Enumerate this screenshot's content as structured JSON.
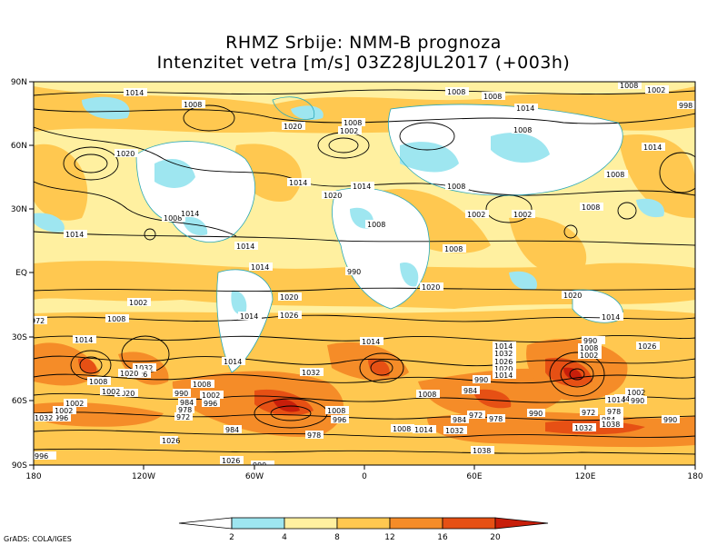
{
  "title": {
    "line1": "RHMZ Srbije: NMM-B prognoza",
    "line2": "Intenzitet vetra [m/s] 03Z28JUL2017 (+003h)"
  },
  "lat_labels": [
    "90N",
    "60N",
    "30N",
    "EQ",
    "30S",
    "60S",
    "90S"
  ],
  "lon_labels": [
    "180",
    "120W",
    "60W",
    "0",
    "60E",
    "120E",
    "180"
  ],
  "colorbar": {
    "ticks": [
      "2",
      "4",
      "8",
      "12",
      "16",
      "20"
    ],
    "colors": [
      "#ffffff",
      "#9ee6f0",
      "#fff0a0",
      "#ffc850",
      "#f58c28",
      "#e65014",
      "#c81e0a"
    ]
  },
  "isobar_labels": [
    "1014",
    "1008",
    "1008",
    "1008",
    "1002",
    "998",
    "1008",
    "1020",
    "1008",
    "1002",
    "1014",
    "1008",
    "1020",
    "1014",
    "1014",
    "1020",
    "1014",
    "1008",
    "1008",
    "1002",
    "1002",
    "1008",
    "1008",
    "1014",
    "1014",
    "1008",
    "1008",
    "1014",
    "1014",
    "1020",
    "1020",
    "1014",
    "1026",
    "1014",
    "1008",
    "1032",
    "1026",
    "1002",
    "1008",
    "1020",
    "990",
    "1002",
    "984",
    "996",
    "978",
    "972",
    "1002",
    "996",
    "1014",
    "1032",
    "984",
    "978",
    "1008",
    "1014",
    "1008",
    "996",
    "1014",
    "1008",
    "1032",
    "1026",
    "1020",
    "1014",
    "990",
    "984",
    "972",
    "984",
    "978",
    "990",
    "1032",
    "1026",
    "1038",
    "990",
    "984",
    "972",
    "1002",
    "990",
    "1008",
    "1002",
    "990",
    "1014",
    "1032",
    "1026",
    "1020",
    "1014",
    "990",
    "978",
    "984",
    "972",
    "1038",
    "996",
    "1026",
    "1002",
    "1008",
    "1014",
    "1020",
    "1032",
    "1026",
    "1002",
    "990",
    "1020",
    "1014"
  ],
  "credit": "GrADS: COLA/IGES"
}
